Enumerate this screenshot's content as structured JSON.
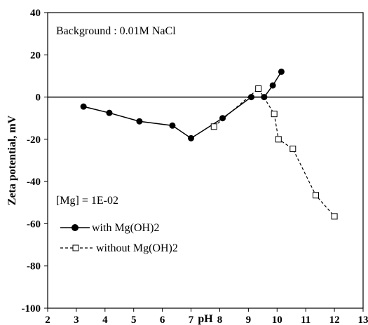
{
  "chart_data": {
    "type": "line",
    "xlabel": "pH",
    "ylabel": "Zeta potential, mV",
    "xlim": [
      2,
      13
    ],
    "ylim": [
      -100,
      40
    ],
    "xticks": [
      "2",
      "3",
      "4",
      "5",
      "6",
      "7",
      "8",
      "9",
      "10",
      "11",
      "12",
      "13"
    ],
    "yticks": [
      "40",
      "20",
      "0",
      "-20",
      "-40",
      "-60",
      "-80",
      "-100"
    ],
    "grid": false,
    "zero_line": true,
    "annotations": {
      "background": "Background : 0.01M NaCl",
      "mg_conc": "[Mg] = 1E-02"
    },
    "legend_position": "lower-left",
    "series": [
      {
        "name": "with Mg(OH)2",
        "marker": "filled-circle",
        "line": "solid",
        "color": "#000000",
        "points": [
          [
            3.25,
            -4.5
          ],
          [
            4.15,
            -7.5
          ],
          [
            5.2,
            -11.5
          ],
          [
            6.35,
            -13.5
          ],
          [
            7.0,
            -19.5
          ],
          [
            8.1,
            -10.0
          ],
          [
            9.1,
            0.0
          ],
          [
            9.55,
            0.0
          ],
          [
            9.85,
            5.5
          ],
          [
            10.15,
            12.0
          ]
        ]
      },
      {
        "name": "without Mg(OH)2",
        "marker": "open-square",
        "line": "dashed",
        "color": "#000000",
        "points": [
          [
            7.8,
            -14.0
          ],
          [
            9.35,
            4.0
          ],
          [
            9.9,
            -8.0
          ],
          [
            10.05,
            -20.0
          ],
          [
            10.55,
            -24.5
          ],
          [
            11.35,
            -46.5
          ],
          [
            12.0,
            -56.5
          ]
        ]
      }
    ]
  }
}
